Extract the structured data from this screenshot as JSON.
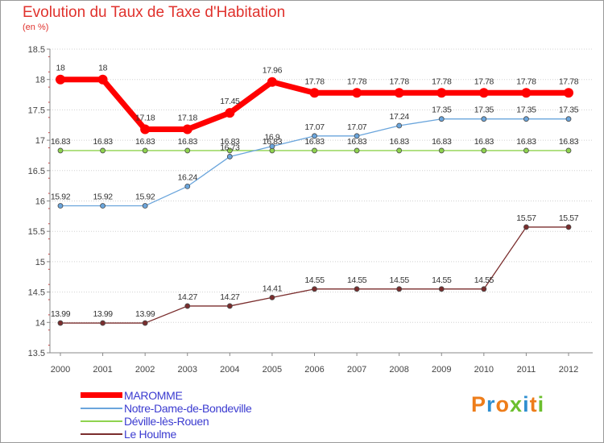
{
  "chart_data": {
    "type": "line",
    "title": "Evolution du Taux de Taxe d'Habitation",
    "subtitle": "(en %)",
    "categories": [
      "2000",
      "2001",
      "2002",
      "2003",
      "2004",
      "2005",
      "2006",
      "2007",
      "2008",
      "2009",
      "2010",
      "2011",
      "2012"
    ],
    "y_ticks": [
      "13.5",
      "14",
      "14.5",
      "15",
      "15.5",
      "16",
      "16.5",
      "17",
      "17.5",
      "18",
      "18.5"
    ],
    "ylim": [
      13.5,
      18.5
    ],
    "grid": "horizontal dotted",
    "legend_placement": "bottom-left",
    "series": [
      {
        "name": "MAROMME",
        "color": "#ff0000",
        "values": [
          18,
          18,
          17.18,
          17.18,
          17.45,
          17.96,
          17.78,
          17.78,
          17.78,
          17.78,
          17.78,
          17.78,
          17.78
        ],
        "labels": [
          "18",
          "18",
          "17.18",
          "17.18",
          "17.45",
          "17.96",
          "17.78",
          "17.78",
          "17.78",
          "17.78",
          "17.78",
          "17.78",
          "17.78"
        ]
      },
      {
        "name": "Notre-Dame-de-Bondeville",
        "color": "#6aa5dc",
        "values": [
          15.92,
          15.92,
          15.92,
          16.24,
          16.73,
          16.9,
          17.07,
          17.07,
          17.24,
          17.35,
          17.35,
          17.35,
          17.35
        ],
        "labels": [
          "15.92",
          "15.92",
          "15.92",
          "16.24",
          "16.73",
          "16.9",
          "17.07",
          "17.07",
          "17.24",
          "17.35",
          "17.35",
          "17.35",
          "17.35"
        ]
      },
      {
        "name": "Déville-lès-Rouen",
        "color": "#8fd34e",
        "values": [
          16.83,
          16.83,
          16.83,
          16.83,
          16.83,
          16.83,
          16.83,
          16.83,
          16.83,
          16.83,
          16.83,
          16.83,
          16.83
        ],
        "labels": [
          "16.83",
          "16.83",
          "16.83",
          "16.83",
          "16.83",
          "16.83",
          "16.83",
          "16.83",
          "16.83",
          "16.83",
          "16.83",
          "16.83",
          "16.83"
        ]
      },
      {
        "name": "Le Houlme",
        "color": "#7a2d2d",
        "values": [
          13.99,
          13.99,
          13.99,
          14.27,
          14.27,
          14.41,
          14.55,
          14.55,
          14.55,
          14.55,
          14.55,
          15.57,
          15.57
        ],
        "labels": [
          "13.99",
          "13.99",
          "13.99",
          "14.27",
          "14.27",
          "14.41",
          "14.55",
          "14.55",
          "14.55",
          "14.55",
          "14.55",
          "15.57",
          "15.57"
        ]
      }
    ]
  },
  "logo": {
    "letters": [
      "P",
      "r",
      "o",
      "x",
      "i",
      "t",
      "i"
    ],
    "colors": [
      "#ee7d1a",
      "#2f8fd0",
      "#ee7d1a",
      "#6cbf2e",
      "#2f8fd0",
      "#ee7d1a",
      "#6cbf2e"
    ]
  }
}
